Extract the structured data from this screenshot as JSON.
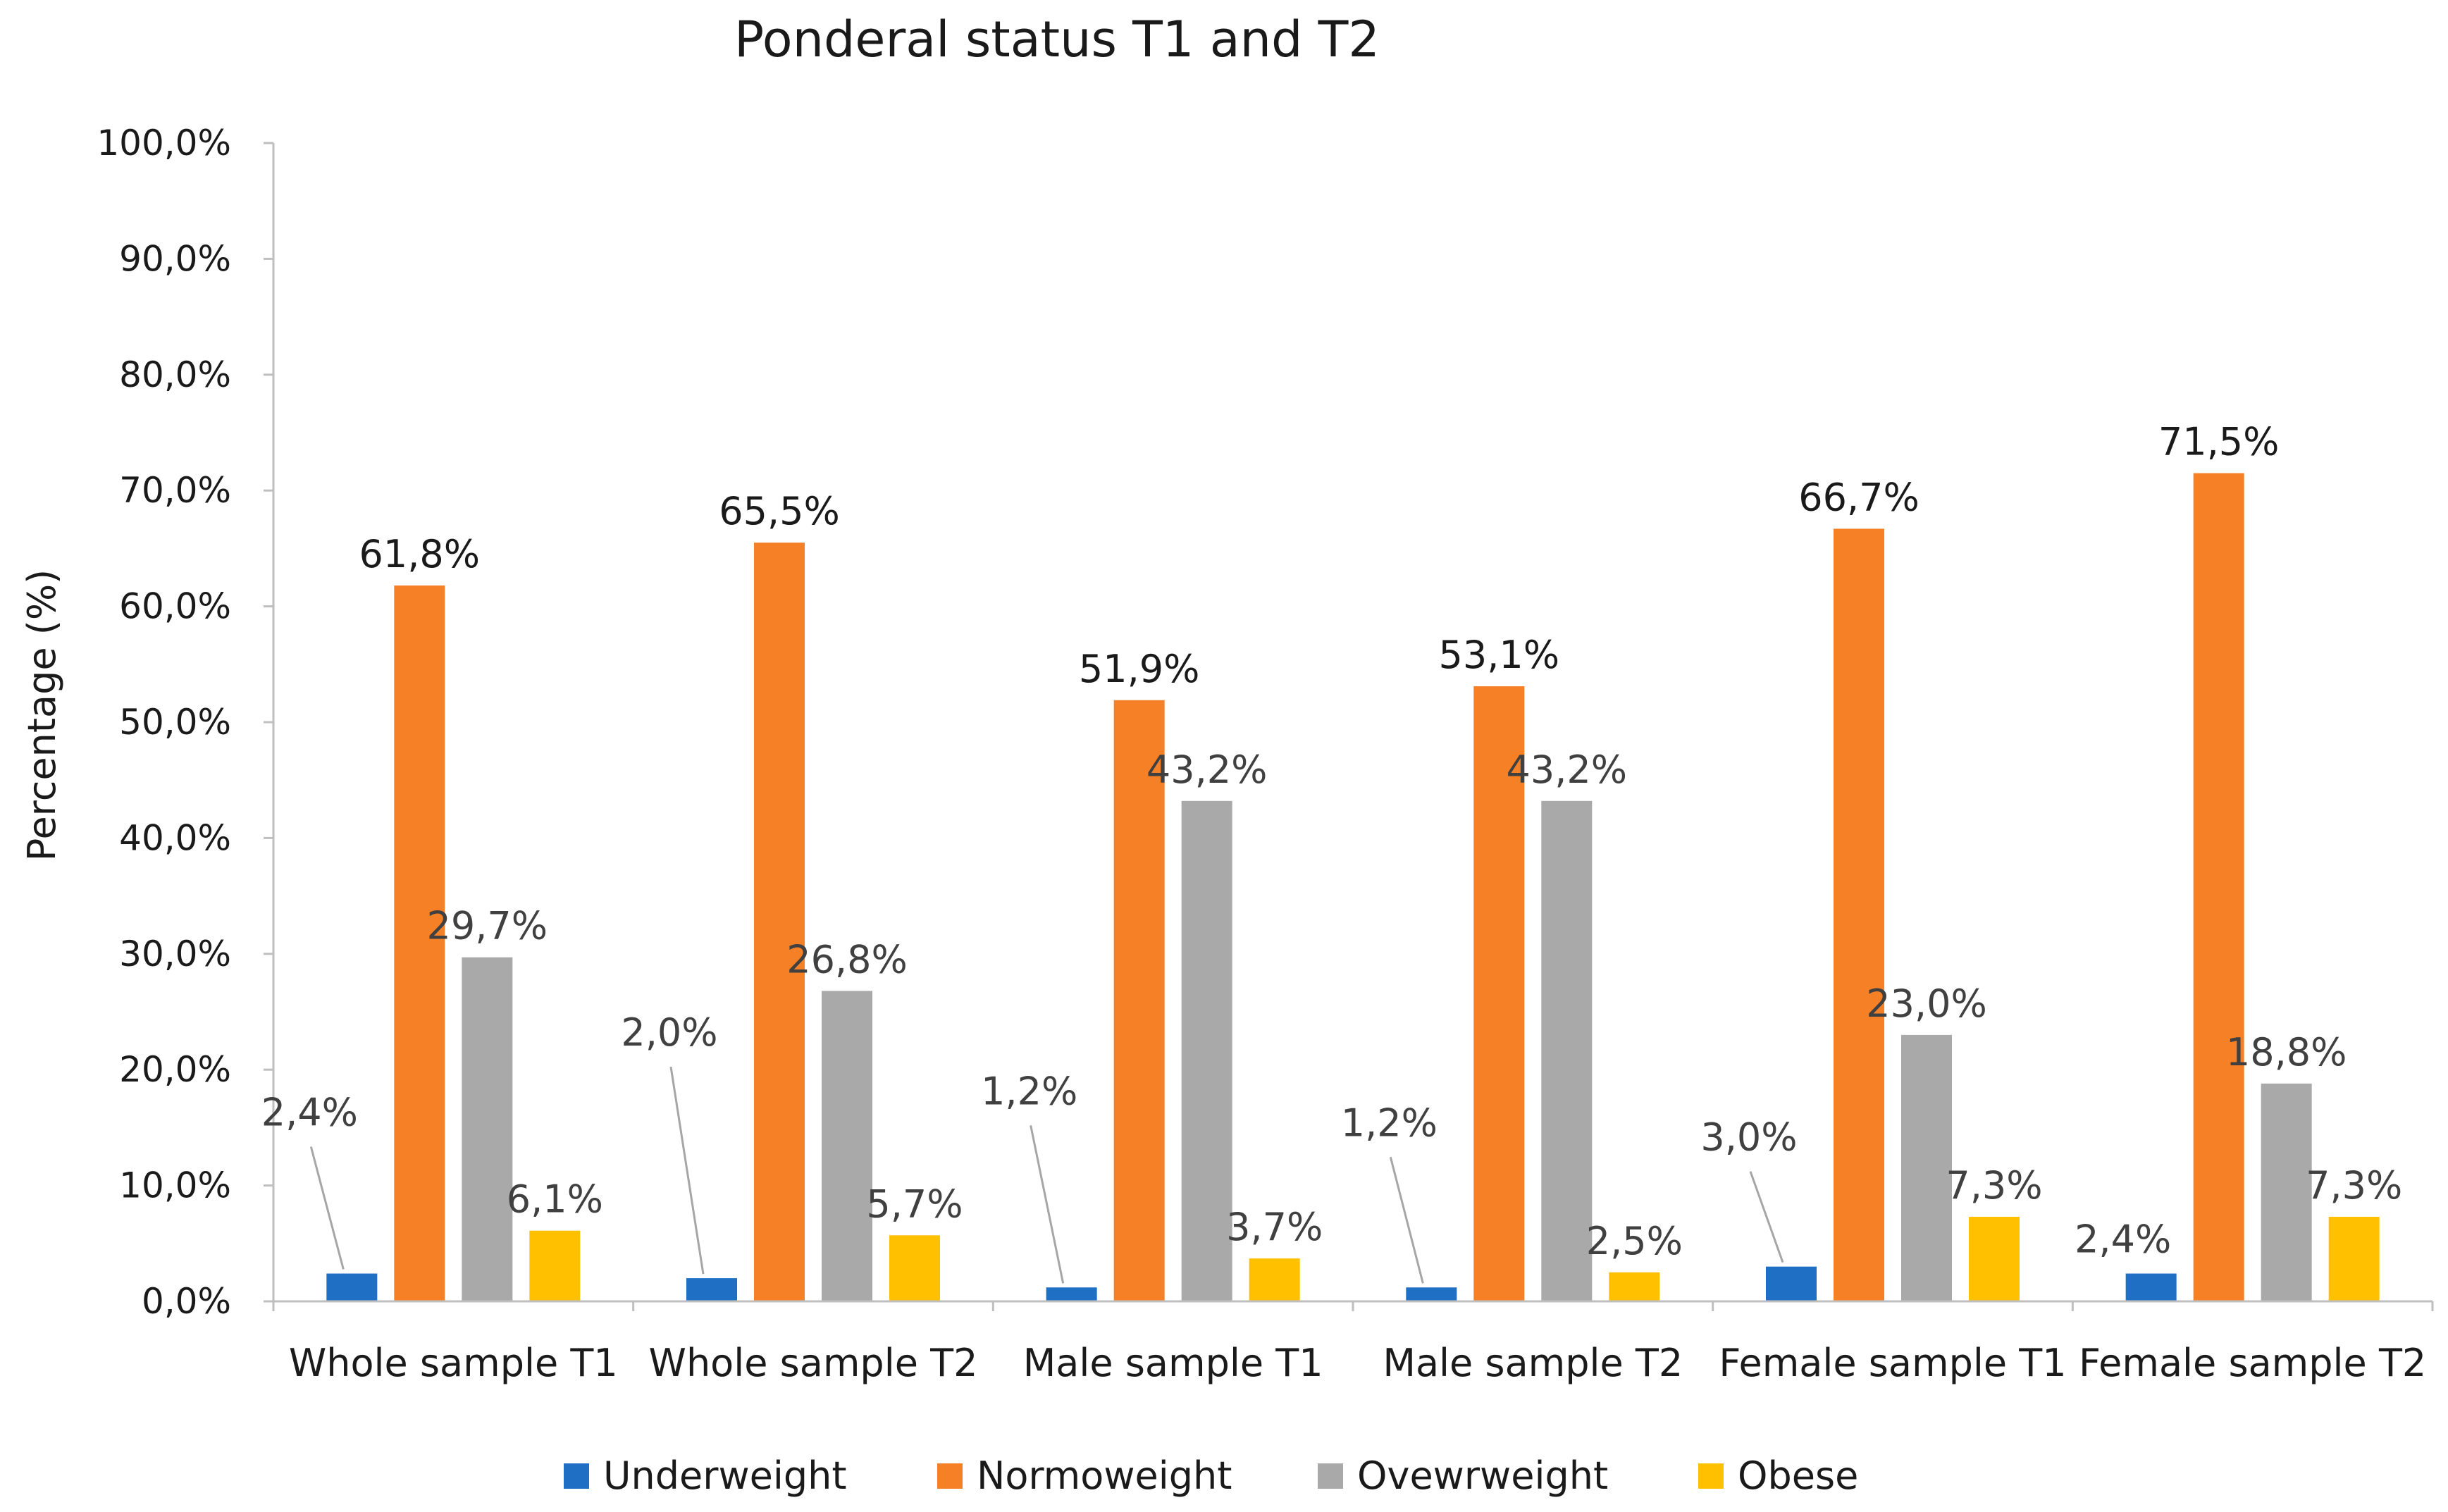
{
  "chart_data": {
    "type": "bar",
    "title": "Ponderal status T1 and T2",
    "xlabel": "",
    "ylabel": "Percentage (%)",
    "ylim": [
      0,
      100
    ],
    "yticks": [
      "0,0%",
      "10,0%",
      "20,0%",
      "30,0%",
      "40,0%",
      "50,0%",
      "60,0%",
      "70,0%",
      "80,0%",
      "90,0%",
      "100,0%"
    ],
    "grid": false,
    "legend_position": "bottom",
    "categories": [
      "Whole sample T1",
      "Whole sample T2",
      "Male sample T1",
      "Male sample T2",
      "Female sample T1",
      "Female sample T2"
    ],
    "series": [
      {
        "name": "Underweight",
        "color": "#1f6fc5",
        "values": [
          2.4,
          2.0,
          1.2,
          1.2,
          3.0,
          2.4
        ],
        "labels": [
          "2,4%",
          "2,0%",
          "1,2%",
          "1,2%",
          "3,0%",
          "2,4%"
        ]
      },
      {
        "name": "Normoweight",
        "color": "#f58025",
        "values": [
          61.8,
          65.5,
          51.9,
          53.1,
          66.7,
          71.5
        ],
        "labels": [
          "61,8%",
          "65,5%",
          "51,9%",
          "53,1%",
          "66,7%",
          "71,5%"
        ]
      },
      {
        "name": "Ovewrweight",
        "color": "#a9a9a9",
        "values": [
          29.7,
          26.8,
          43.2,
          43.2,
          23.0,
          18.8
        ],
        "labels": [
          "29,7%",
          "26,8%",
          "43,2%",
          "43,2%",
          "23,0%",
          "18,8%"
        ]
      },
      {
        "name": "Obese",
        "color": "#ffc000",
        "values": [
          6.1,
          5.7,
          3.7,
          2.5,
          7.3,
          7.3
        ],
        "labels": [
          "6,1%",
          "5,7%",
          "3,7%",
          "2,5%",
          "7,3%",
          "7,3%"
        ]
      }
    ]
  }
}
